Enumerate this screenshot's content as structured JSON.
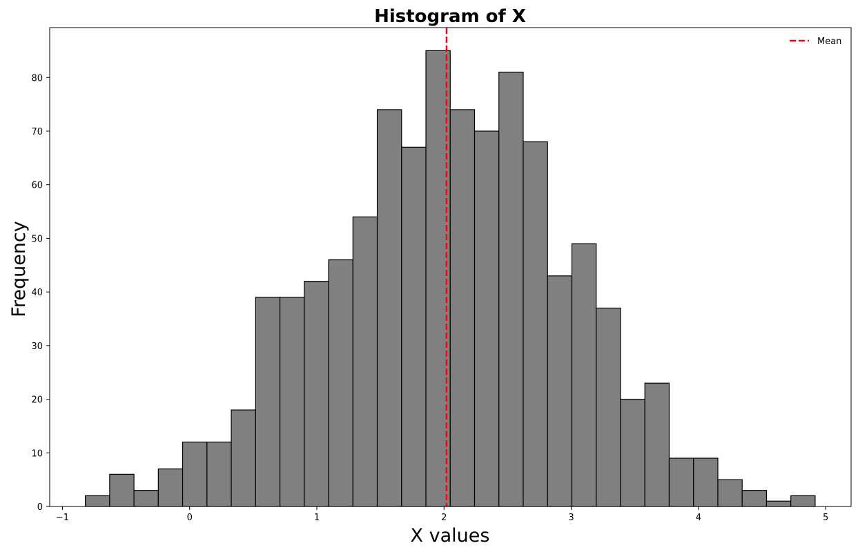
{
  "chart_data": {
    "type": "bar",
    "title": "Histogram of X",
    "xlabel": "X values",
    "ylabel": "Frequency",
    "xlim": [
      -1.1,
      5.2
    ],
    "ylim": [
      0,
      89.3
    ],
    "grid": false,
    "legend_position": "top-right",
    "bin_start": -0.82,
    "bin_width": 0.19125,
    "values": [
      2,
      6,
      3,
      7,
      12,
      12,
      18,
      39,
      39,
      42,
      46,
      54,
      74,
      67,
      85,
      74,
      70,
      81,
      68,
      43,
      49,
      37,
      20,
      23,
      9,
      9,
      5,
      3,
      1,
      2
    ],
    "x_ticks": [
      -1,
      0,
      1,
      2,
      3,
      4,
      5
    ],
    "x_tick_labels": [
      "−1",
      "0",
      "1",
      "2",
      "3",
      "4",
      "5"
    ],
    "y_ticks": [
      0,
      10,
      20,
      30,
      40,
      50,
      60,
      70,
      80
    ],
    "y_tick_labels": [
      "0",
      "10",
      "20",
      "30",
      "40",
      "50",
      "60",
      "70",
      "80"
    ],
    "mean": 2.02,
    "legend": [
      {
        "label": "Mean",
        "style": "dashed",
        "color": "#ff0000"
      }
    ],
    "colors": {
      "bar_fill": "#808080",
      "bar_edge": "#000000",
      "mean_line": "#ff0000"
    }
  }
}
